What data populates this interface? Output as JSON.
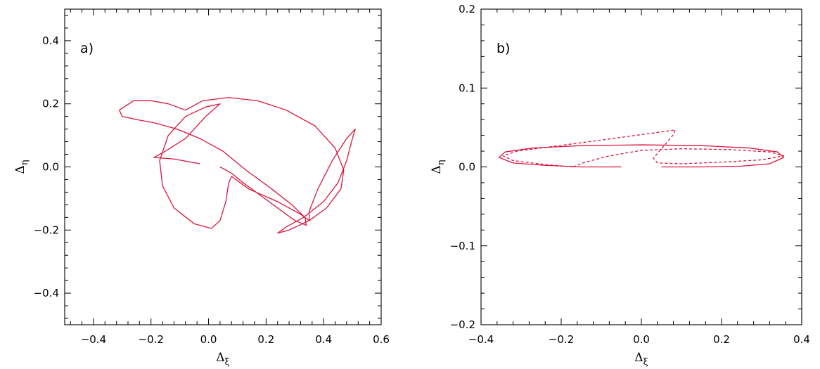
{
  "chart_data": [
    {
      "type": "line",
      "panel_label": "a)",
      "xlabel": "Δξ",
      "ylabel": "Δη",
      "xlim": [
        -0.5,
        0.6
      ],
      "ylim": [
        -0.5,
        0.5
      ],
      "xticks": [
        "-0.4",
        "-0.2",
        "0.0",
        "0.2",
        "0.4",
        "0.6"
      ],
      "xtick_values": [
        -0.4,
        -0.2,
        0.0,
        0.2,
        0.4,
        0.6
      ],
      "yticks": [
        "-0.4",
        "-0.2",
        "0.0",
        "0.2",
        "0.4"
      ],
      "ytick_values": [
        -0.4,
        -0.2,
        0.0,
        0.2,
        0.4
      ],
      "series": [
        {
          "style": "solid",
          "color": "#d9163f",
          "points": [
            [
              0.04,
              0.0
            ],
            [
              0.08,
              -0.02
            ],
            [
              0.12,
              -0.05
            ],
            [
              0.18,
              -0.09
            ],
            [
              0.24,
              -0.13
            ],
            [
              0.3,
              -0.17
            ],
            [
              0.34,
              -0.185
            ],
            [
              0.335,
              -0.16
            ],
            [
              0.29,
              -0.12
            ],
            [
              0.22,
              -0.07
            ],
            [
              0.13,
              -0.01
            ],
            [
              0.05,
              0.05
            ],
            [
              -0.03,
              0.09
            ],
            [
              -0.11,
              0.12
            ],
            [
              -0.19,
              0.14
            ],
            [
              -0.25,
              0.15
            ],
            [
              -0.3,
              0.16
            ],
            [
              -0.31,
              0.18
            ],
            [
              -0.26,
              0.21
            ],
            [
              -0.2,
              0.21
            ],
            [
              -0.14,
              0.2
            ],
            [
              -0.08,
              0.18
            ],
            [
              -0.02,
              0.21
            ],
            [
              0.07,
              0.22
            ],
            [
              0.17,
              0.21
            ],
            [
              0.27,
              0.18
            ],
            [
              0.37,
              0.13
            ],
            [
              0.44,
              0.06
            ],
            [
              0.47,
              -0.01
            ],
            [
              0.46,
              -0.07
            ],
            [
              0.41,
              -0.13
            ],
            [
              0.35,
              -0.17
            ],
            [
              0.28,
              -0.2
            ],
            [
              0.24,
              -0.21
            ],
            [
              0.27,
              -0.19
            ],
            [
              0.33,
              -0.16
            ],
            [
              0.4,
              -0.11
            ],
            [
              0.45,
              -0.05
            ],
            [
              0.48,
              0.02
            ],
            [
              0.5,
              0.09
            ],
            [
              0.51,
              0.12
            ],
            [
              0.48,
              0.09
            ],
            [
              0.43,
              0.02
            ],
            [
              0.38,
              -0.07
            ],
            [
              0.35,
              -0.14
            ],
            [
              0.35,
              -0.17
            ],
            [
              0.32,
              -0.15
            ],
            [
              0.24,
              -0.11
            ],
            [
              0.14,
              -0.07
            ],
            [
              0.08,
              -0.03
            ],
            [
              0.07,
              -0.05
            ],
            [
              0.06,
              -0.11
            ],
            [
              0.04,
              -0.17
            ],
            [
              0.01,
              -0.195
            ],
            [
              -0.05,
              -0.18
            ],
            [
              -0.12,
              -0.13
            ],
            [
              -0.16,
              -0.06
            ],
            [
              -0.17,
              0.02
            ],
            [
              -0.14,
              0.1
            ],
            [
              -0.08,
              0.16
            ],
            [
              -0.01,
              0.19
            ],
            [
              0.04,
              0.2
            ],
            [
              -0.01,
              0.16
            ],
            [
              -0.08,
              0.09
            ],
            [
              -0.15,
              0.05
            ],
            [
              -0.19,
              0.03
            ],
            [
              -0.12,
              0.025
            ],
            [
              -0.06,
              0.015
            ],
            [
              -0.03,
              0.01
            ]
          ]
        }
      ]
    },
    {
      "type": "line",
      "panel_label": "b)",
      "xlabel": "Δξ",
      "ylabel": "Δη",
      "xlim": [
        -0.4,
        0.4
      ],
      "ylim": [
        -0.2,
        0.2
      ],
      "xticks": [
        "-0.4",
        "-0.2",
        "0.0",
        "0.2",
        "0.4"
      ],
      "xtick_values": [
        -0.4,
        -0.2,
        0.0,
        0.2,
        0.4
      ],
      "yticks": [
        "-0.2",
        "-0.1",
        "0.0",
        "0.1",
        "0.2"
      ],
      "ytick_values": [
        -0.2,
        -0.1,
        0.0,
        0.1,
        0.2
      ],
      "series": [
        {
          "style": "solid",
          "color": "#d9163f",
          "points": [
            [
              0.05,
              0.0
            ],
            [
              0.15,
              0.0
            ],
            [
              0.25,
              0.001
            ],
            [
              0.32,
              0.004
            ],
            [
              0.355,
              0.012
            ],
            [
              0.34,
              0.019
            ],
            [
              0.27,
              0.024
            ],
            [
              0.15,
              0.027
            ],
            [
              0.0,
              0.028
            ],
            [
              -0.15,
              0.027
            ],
            [
              -0.27,
              0.024
            ],
            [
              -0.34,
              0.019
            ],
            [
              -0.355,
              0.012
            ],
            [
              -0.32,
              0.005
            ],
            [
              -0.24,
              0.002
            ],
            [
              -0.15,
              0.0
            ],
            [
              -0.05,
              0.0
            ]
          ]
        },
        {
          "style": "dashed",
          "color": "#d9163f",
          "points": [
            [
              -0.17,
              0.0
            ],
            [
              -0.14,
              0.006
            ],
            [
              -0.08,
              0.014
            ],
            [
              0.0,
              0.021
            ],
            [
              0.1,
              0.023
            ],
            [
              0.22,
              0.022
            ],
            [
              0.32,
              0.019
            ],
            [
              0.355,
              0.014
            ],
            [
              0.3,
              0.009
            ],
            [
              0.2,
              0.006
            ],
            [
              0.1,
              0.004
            ],
            [
              0.04,
              0.005
            ],
            [
              0.03,
              0.011
            ],
            [
              0.05,
              0.023
            ],
            [
              0.08,
              0.041
            ],
            [
              0.085,
              0.047
            ],
            [
              0.06,
              0.045
            ],
            [
              0.0,
              0.041
            ],
            [
              -0.1,
              0.034
            ],
            [
              -0.22,
              0.026
            ],
            [
              -0.31,
              0.02
            ],
            [
              -0.345,
              0.014
            ],
            [
              -0.32,
              0.008
            ],
            [
              -0.24,
              0.003
            ],
            [
              -0.17,
              0.0
            ]
          ]
        }
      ]
    }
  ]
}
